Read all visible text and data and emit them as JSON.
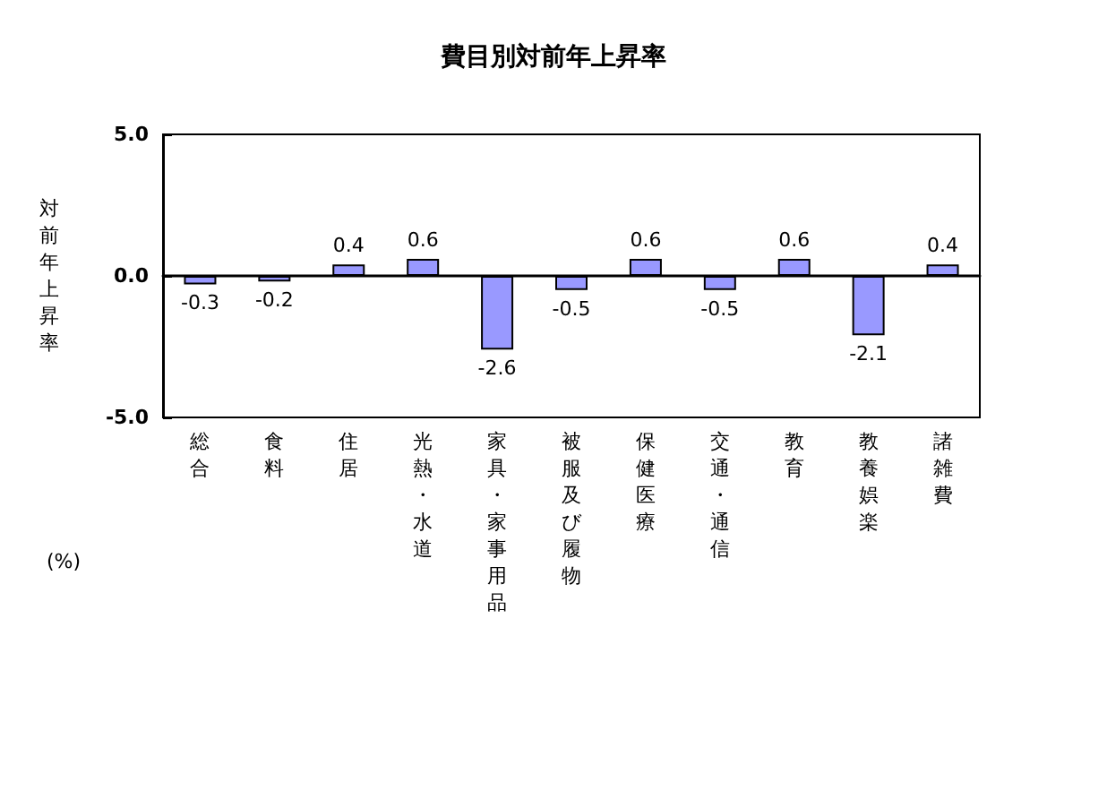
{
  "chart_data": {
    "type": "bar",
    "title": "費目別対前年上昇率",
    "ylabel": "対前年上昇率",
    "annotations": [
      "(%)"
    ],
    "categories": [
      "総合",
      "食料",
      "住居",
      "光熱・水道",
      "家具・家事用品",
      "被服及び履物",
      "保健医療",
      "交通・通信",
      "教育",
      "教養娯楽",
      "諸雑費"
    ],
    "values": [
      -0.3,
      -0.2,
      0.4,
      0.6,
      -2.6,
      -0.5,
      0.6,
      -0.5,
      0.6,
      -2.1,
      0.4
    ],
    "color": "#9999ff",
    "ylim": [
      -5,
      5
    ],
    "yticks": [
      {
        "value": -5,
        "label": "-5.0"
      },
      {
        "value": 0,
        "label": "0.0"
      },
      {
        "value": 5,
        "label": "5.0"
      }
    ],
    "data_labels": true
  }
}
